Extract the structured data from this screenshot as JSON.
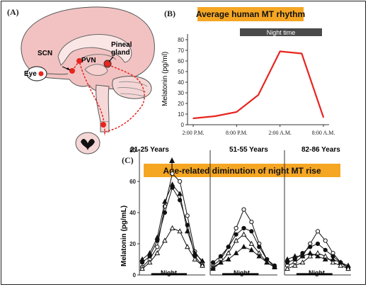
{
  "panels": {
    "a": {
      "label": "(A)",
      "structures": {
        "eye": "Eye",
        "scn": "SCN",
        "pvn": "PVN",
        "pineal": "Pineal\ngland"
      }
    },
    "b": {
      "label": "(B)",
      "title": "Average human MT rhythm",
      "night_label": "Night time",
      "ylabel": "Melatonin (pg/ml)",
      "yticks": [
        "0",
        "10",
        "20",
        "30",
        "40",
        "50",
        "60",
        "70",
        "80"
      ],
      "xticks": [
        "2:00 P.M.",
        "8:00 P.M.",
        "2:00 A.M.",
        "8:00 A.M."
      ]
    },
    "c": {
      "label": "(C)",
      "title": "Age-related diminution of night MT rise",
      "ylabel": "Melatonin (pg/mL)",
      "yticks": [
        "0",
        "20",
        "40",
        "60",
        "80"
      ],
      "groups": [
        "21-25 Years",
        "51-55 Years",
        "82-86 Years"
      ],
      "night_label": "Night"
    }
  },
  "colors": {
    "accent": "#f5a623",
    "curve": "#e8251f",
    "brain": "#f2c2c2",
    "night_bar": "#4a4a4a"
  },
  "chart_data": [
    {
      "type": "line",
      "title": "Average human MT rhythm",
      "ylabel": "Melatonin (pg/ml)",
      "xlabel": "",
      "ylim": [
        0,
        80
      ],
      "x": [
        "2:00 P.M.",
        "5:00 P.M.",
        "8:00 P.M.",
        "11:00 P.M.",
        "2:00 A.M.",
        "5:00 A.M.",
        "8:00 A.M."
      ],
      "series": [
        {
          "values": [
            6,
            8,
            12,
            28,
            69,
            67,
            7
          ]
        }
      ]
    },
    {
      "type": "line",
      "title": "Age-related diminution of night MT rise",
      "ylabel": "Melatonin (pg/mL)",
      "ylim": [
        0,
        80
      ],
      "panels": [
        {
          "name": "21-25 Years",
          "series": [
            {
              "marker": "circle-open",
              "values": [
                5,
                10,
                18,
                44,
                65,
                60,
                38,
                15,
                8
              ]
            },
            {
              "marker": "circle-filled",
              "values": [
                8,
                12,
                22,
                40,
                56,
                48,
                32,
                12,
                6
              ]
            },
            {
              "marker": "triangle-filled",
              "values": [
                10,
                14,
                24,
                47,
                58,
                52,
                28,
                14,
                9
              ]
            },
            {
              "marker": "triangle-open",
              "values": [
                4,
                8,
                14,
                22,
                30,
                28,
                18,
                10,
                6
              ]
            }
          ]
        },
        {
          "name": "51-55 Years",
          "series": [
            {
              "marker": "circle-open",
              "values": [
                6,
                10,
                18,
                30,
                42,
                34,
                20,
                10,
                5
              ]
            },
            {
              "marker": "circle-filled",
              "values": [
                8,
                12,
                18,
                26,
                30,
                28,
                18,
                10,
                6
              ]
            },
            {
              "marker": "triangle-open",
              "values": [
                5,
                8,
                14,
                22,
                26,
                20,
                14,
                8,
                5
              ]
            },
            {
              "marker": "triangle-filled",
              "values": [
                4,
                8,
                10,
                14,
                18,
                16,
                12,
                8,
                5
              ]
            }
          ]
        },
        {
          "name": "82-86 Years",
          "series": [
            {
              "marker": "circle-open",
              "values": [
                6,
                8,
                12,
                20,
                28,
                22,
                14,
                8,
                4
              ]
            },
            {
              "marker": "circle-filled",
              "values": [
                8,
                10,
                14,
                18,
                20,
                16,
                12,
                8,
                5
              ]
            },
            {
              "marker": "triangle-filled",
              "values": [
                10,
                12,
                12,
                14,
                12,
                10,
                10,
                8,
                6
              ]
            },
            {
              "marker": "triangle-open",
              "values": [
                4,
                6,
                8,
                12,
                14,
                12,
                8,
                6,
                4
              ]
            }
          ]
        }
      ]
    }
  ]
}
